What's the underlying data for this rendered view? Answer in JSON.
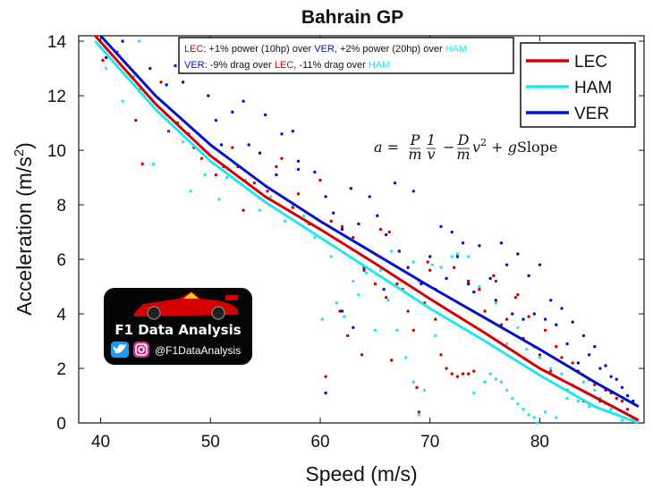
{
  "chart_data": {
    "type": "scatter",
    "title": "Bahrain GP",
    "xlabel": "Speed (m/s)",
    "ylabel": "Acceleration (m/s²)",
    "ylabel_main": "Acceleration (m/s",
    "ylabel_sup": "2",
    "ylabel_close": ")",
    "xlim": [
      38,
      89.5
    ],
    "ylim": [
      0,
      14.2
    ],
    "xticks": [
      "40",
      "50",
      "60",
      "70",
      "80"
    ],
    "yticks": [
      "0",
      "2",
      "4",
      "6",
      "8",
      "10",
      "12",
      "14"
    ],
    "grid": false,
    "legend_position": "top-right",
    "series": [
      {
        "name": "LEC",
        "color": "#d40000",
        "fit_line": {
          "x": [
            39.5,
            45,
            50,
            55,
            60,
            65,
            70,
            75,
            80,
            85,
            89
          ],
          "y": [
            14.2,
            11.7,
            9.8,
            8.3,
            7.1,
            5.85,
            4.55,
            3.3,
            2.0,
            0.95,
            0.1
          ]
        },
        "points": [
          [
            40.2,
            13.3
          ],
          [
            41.5,
            13.6
          ],
          [
            43.2,
            11.1
          ],
          [
            43.8,
            9.5
          ],
          [
            45.5,
            12.5
          ],
          [
            46.2,
            10.7
          ],
          [
            47.0,
            11.0
          ],
          [
            48.5,
            10.1
          ],
          [
            49.2,
            9.7
          ],
          [
            50.5,
            9.1
          ],
          [
            51.2,
            9.4
          ],
          [
            52.5,
            9.4
          ],
          [
            53.0,
            7.8
          ],
          [
            54.0,
            8.8
          ],
          [
            55.2,
            8.5
          ],
          [
            56.0,
            9.4
          ],
          [
            57.5,
            7.9
          ],
          [
            58.0,
            8.4
          ],
          [
            59.0,
            7.3
          ],
          [
            60.0,
            8.9
          ],
          [
            60.5,
            1.7
          ],
          [
            61.0,
            7.4
          ],
          [
            61.8,
            4.1
          ],
          [
            62.5,
            3.2
          ],
          [
            63.0,
            6.8
          ],
          [
            63.8,
            2.5
          ],
          [
            64.0,
            5.6
          ],
          [
            65.0,
            5.1
          ],
          [
            65.5,
            7.1
          ],
          [
            66.0,
            4.6
          ],
          [
            66.5,
            2.3
          ],
          [
            67.0,
            5.1
          ],
          [
            67.5,
            4.9
          ],
          [
            68.0,
            4.1
          ],
          [
            68.5,
            3.4
          ],
          [
            68.8,
            1.3
          ],
          [
            69.0,
            0.4
          ],
          [
            69.5,
            4.4
          ],
          [
            70.0,
            5.6
          ],
          [
            70.5,
            3.8
          ],
          [
            71.0,
            2.5
          ],
          [
            71.5,
            2.0
          ],
          [
            72.0,
            1.8
          ],
          [
            72.5,
            1.7
          ],
          [
            73.0,
            1.8
          ],
          [
            73.5,
            1.8
          ],
          [
            74.0,
            1.9
          ],
          [
            73.5,
            5.2
          ],
          [
            74.5,
            4.9
          ],
          [
            75.0,
            4.1
          ],
          [
            75.8,
            5.4
          ],
          [
            76.5,
            3.6
          ],
          [
            77.0,
            3.8
          ],
          [
            77.8,
            4.6
          ],
          [
            78.5,
            3.1
          ],
          [
            79.0,
            3.9
          ],
          [
            79.5,
            2.8
          ],
          [
            80.0,
            2.5
          ],
          [
            80.5,
            3.4
          ],
          [
            81.0,
            1.9
          ],
          [
            81.5,
            2.8
          ],
          [
            82.0,
            2.4
          ],
          [
            82.5,
            1.2
          ],
          [
            83.0,
            2.2
          ],
          [
            83.5,
            1.9
          ],
          [
            84.0,
            0.8
          ],
          [
            84.5,
            1.6
          ],
          [
            85.0,
            1.4
          ],
          [
            85.5,
            0.8
          ],
          [
            86.0,
            1.2
          ],
          [
            86.5,
            1.1
          ],
          [
            87.0,
            0.9
          ],
          [
            87.5,
            0.8
          ],
          [
            88.0,
            0.5
          ],
          [
            88.5,
            0.2
          ],
          [
            66.3,
            7.0
          ],
          [
            67.2,
            6.3
          ],
          [
            69.8,
            5.9
          ],
          [
            72.2,
            5.7
          ],
          [
            76.0,
            5.2
          ],
          [
            78.0,
            4.7
          ],
          [
            62.0,
            7.2
          ],
          [
            56.5,
            9.7
          ],
          [
            52.0,
            10.1
          ]
        ]
      },
      {
        "name": "HAM",
        "color": "#22e5f0",
        "fit_line": {
          "x": [
            39.5,
            45,
            50,
            55,
            60,
            65,
            70,
            75,
            80,
            85,
            89
          ],
          "y": [
            14.0,
            11.5,
            9.6,
            8.1,
            6.8,
            5.5,
            4.2,
            3.0,
            1.75,
            0.6,
            0.0
          ]
        },
        "points": [
          [
            40.5,
            13.0
          ],
          [
            42.0,
            11.8
          ],
          [
            43.0,
            12.7
          ],
          [
            43.5,
            14.0
          ],
          [
            44.8,
            9.5
          ],
          [
            46.0,
            11.3
          ],
          [
            47.5,
            10.3
          ],
          [
            48.2,
            8.5
          ],
          [
            49.5,
            9.1
          ],
          [
            50.8,
            8.2
          ],
          [
            51.5,
            9.0
          ],
          [
            53.2,
            8.9
          ],
          [
            54.5,
            7.8
          ],
          [
            55.5,
            8.3
          ],
          [
            56.8,
            7.4
          ],
          [
            58.5,
            7.6
          ],
          [
            59.5,
            6.8
          ],
          [
            60.2,
            3.8
          ],
          [
            61.5,
            4.4
          ],
          [
            62.2,
            3.9
          ],
          [
            63.0,
            5.2
          ],
          [
            63.5,
            4.7
          ],
          [
            64.2,
            5.5
          ],
          [
            65.0,
            3.4
          ],
          [
            65.5,
            5.6
          ],
          [
            66.2,
            4.5
          ],
          [
            67.0,
            3.4
          ],
          [
            67.8,
            2.4
          ],
          [
            68.5,
            1.5
          ],
          [
            69.0,
            0.3
          ],
          [
            69.5,
            1.2
          ],
          [
            70.2,
            5.8
          ],
          [
            70.5,
            3.2
          ],
          [
            71.0,
            5.7
          ],
          [
            72.0,
            6.1
          ],
          [
            72.5,
            6.2
          ],
          [
            73.5,
            6.1
          ],
          [
            74.0,
            1.1
          ],
          [
            74.5,
            5.0
          ],
          [
            75.0,
            1.5
          ],
          [
            75.5,
            1.8
          ],
          [
            76.0,
            1.6
          ],
          [
            76.5,
            1.5
          ],
          [
            77.0,
            1.2
          ],
          [
            77.5,
            0.9
          ],
          [
            78.0,
            0.7
          ],
          [
            78.5,
            0.5
          ],
          [
            79.0,
            0.3
          ],
          [
            79.5,
            0.2
          ],
          [
            79.8,
            0.0
          ],
          [
            76.0,
            4.4
          ],
          [
            77.0,
            2.9
          ],
          [
            78.0,
            3.5
          ],
          [
            78.8,
            2.7
          ],
          [
            80.0,
            2.4
          ],
          [
            80.5,
            0.4
          ],
          [
            81.0,
            2.0
          ],
          [
            81.5,
            0.2
          ],
          [
            82.0,
            1.8
          ],
          [
            82.5,
            0.9
          ],
          [
            83.0,
            1.4
          ],
          [
            83.5,
            0.8
          ],
          [
            84.0,
            1.5
          ],
          [
            84.5,
            0.6
          ],
          [
            85.0,
            1.2
          ],
          [
            85.5,
            0.9
          ],
          [
            86.0,
            0.7
          ],
          [
            86.5,
            0.5
          ],
          [
            87.0,
            0.3
          ],
          [
            87.5,
            0.1
          ],
          [
            66.5,
            6.3
          ],
          [
            68.5,
            5.9
          ],
          [
            69.0,
            5.2
          ],
          [
            57.5,
            8.0
          ],
          [
            61.0,
            6.1
          ]
        ]
      },
      {
        "name": "VER",
        "color": "#0012c8",
        "fit_line": {
          "x": [
            40,
            45,
            50,
            55,
            60,
            65,
            70,
            75,
            80,
            85,
            89
          ],
          "y": [
            14.2,
            12.0,
            10.2,
            8.7,
            7.4,
            6.2,
            5.0,
            3.85,
            2.7,
            1.5,
            0.6
          ]
        },
        "points": [
          [
            40.5,
            13.4
          ],
          [
            42.0,
            14.0
          ],
          [
            43.5,
            12.2
          ],
          [
            44.5,
            13.0
          ],
          [
            46.0,
            12.4
          ],
          [
            46.8,
            13.1
          ],
          [
            47.5,
            12.5
          ],
          [
            48.0,
            10.6
          ],
          [
            49.8,
            12.0
          ],
          [
            51.0,
            10.2
          ],
          [
            52.0,
            11.4
          ],
          [
            53.5,
            10.2
          ],
          [
            54.5,
            9.9
          ],
          [
            55.0,
            11.3
          ],
          [
            56.5,
            10.6
          ],
          [
            57.5,
            10.7
          ],
          [
            58.0,
            9.3
          ],
          [
            59.5,
            9.2
          ],
          [
            60.5,
            8.3
          ],
          [
            61.2,
            7.7
          ],
          [
            62.0,
            7.1
          ],
          [
            62.8,
            8.6
          ],
          [
            63.5,
            7.3
          ],
          [
            64.0,
            5.7
          ],
          [
            64.5,
            8.3
          ],
          [
            65.2,
            7.6
          ],
          [
            65.8,
            4.9
          ],
          [
            66.0,
            6.9
          ],
          [
            66.8,
            8.8
          ],
          [
            67.2,
            6.3
          ],
          [
            68.0,
            5.7
          ],
          [
            68.5,
            8.5
          ],
          [
            69.2,
            5.1
          ],
          [
            70.0,
            6.1
          ],
          [
            70.5,
            4.9
          ],
          [
            71.0,
            7.2
          ],
          [
            71.5,
            5.3
          ],
          [
            72.0,
            7.0
          ],
          [
            72.5,
            6.1
          ],
          [
            73.0,
            6.6
          ],
          [
            73.5,
            5.1
          ],
          [
            74.0,
            4.8
          ],
          [
            74.5,
            6.5
          ],
          [
            75.5,
            5.3
          ],
          [
            76.0,
            4.5
          ],
          [
            76.5,
            6.6
          ],
          [
            77.0,
            5.8
          ],
          [
            77.5,
            4.0
          ],
          [
            78.0,
            6.2
          ],
          [
            78.5,
            3.8
          ],
          [
            79.0,
            5.4
          ],
          [
            79.5,
            4.0
          ],
          [
            80.0,
            5.8
          ],
          [
            80.5,
            3.8
          ],
          [
            81.0,
            4.5
          ],
          [
            81.5,
            3.6
          ],
          [
            82.0,
            4.2
          ],
          [
            82.5,
            2.9
          ],
          [
            83.0,
            3.7
          ],
          [
            83.5,
            2.2
          ],
          [
            84.0,
            3.2
          ],
          [
            84.5,
            2.5
          ],
          [
            85.0,
            2.8
          ],
          [
            85.5,
            2.0
          ],
          [
            86.0,
            2.1
          ],
          [
            86.5,
            1.7
          ],
          [
            87.0,
            1.6
          ],
          [
            87.5,
            1.3
          ],
          [
            88.0,
            1.0
          ],
          [
            88.5,
            0.8
          ],
          [
            60.5,
            1.1
          ],
          [
            62.0,
            4.1
          ],
          [
            63.0,
            3.5
          ],
          [
            58.0,
            9.6
          ],
          [
            56.0,
            9.1
          ],
          [
            53.0,
            11.8
          ],
          [
            50.5,
            11.1
          ]
        ]
      }
    ],
    "annotation_lines": [
      [
        {
          "text": "LEC",
          "color": "#d40000"
        },
        {
          "text": ": +1% power (10hp) over ",
          "color": "#111111"
        },
        {
          "text": "VER",
          "color": "#0012c8"
        },
        {
          "text": ", +2% power (20hp) over ",
          "color": "#111111"
        },
        {
          "text": "HAM",
          "color": "#22e5f0"
        }
      ],
      [
        {
          "text": "VER",
          "color": "#0012c8"
        },
        {
          "text": ": -9% drag over ",
          "color": "#111111"
        },
        {
          "text": "LEC",
          "color": "#d40000"
        },
        {
          "text": ", -11% drag over ",
          "color": "#111111"
        },
        {
          "text": "HAM",
          "color": "#22e5f0"
        }
      ]
    ],
    "formula": "a = (P/m)(1/v) − (D/m)v² + g Slope"
  },
  "logo": {
    "title": "F1 Data Analysis",
    "handle": "@F1DataAnalysis",
    "twitter_icon": "twitter-icon",
    "instagram_icon": "instagram-icon"
  }
}
